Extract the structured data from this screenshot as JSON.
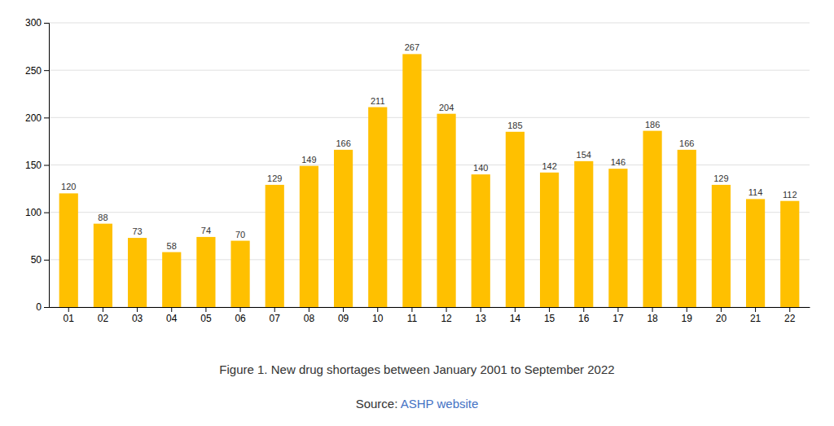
{
  "chart_data": {
    "type": "bar",
    "categories": [
      "01",
      "02",
      "03",
      "04",
      "05",
      "06",
      "07",
      "08",
      "09",
      "10",
      "11",
      "12",
      "13",
      "14",
      "15",
      "16",
      "17",
      "18",
      "19",
      "20",
      "21",
      "22"
    ],
    "values": [
      120,
      88,
      73,
      58,
      74,
      70,
      129,
      149,
      166,
      211,
      267,
      204,
      140,
      185,
      142,
      154,
      146,
      186,
      166,
      129,
      114,
      112
    ],
    "color": "#FFC000",
    "ylim": [
      0,
      300
    ],
    "yticks": [
      0,
      50,
      100,
      150,
      200,
      250,
      300
    ],
    "grid": true,
    "data_labels": true,
    "annotations": [
      {
        "text": "Figure 1. New drug shortages between January 2001 to September 2022"
      },
      {
        "text": "Source: "
      },
      {
        "text": "ASHP website",
        "color": "#4472C4"
      }
    ]
  }
}
